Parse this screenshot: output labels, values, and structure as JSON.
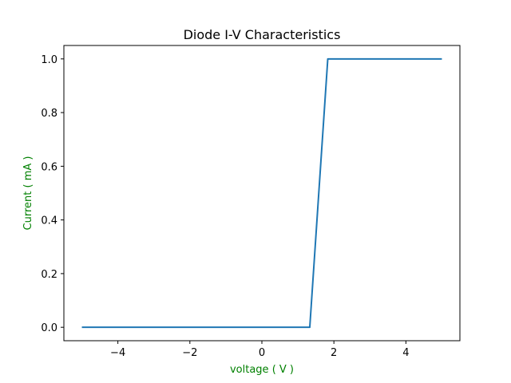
{
  "chart_data": {
    "type": "line",
    "title": "Diode I-V Characteristics",
    "xlabel": "voltage ( V )",
    "ylabel": "Current ( mA )",
    "label_color": "#008000",
    "line_color": "#1f77b4",
    "xlim": [
      -5.5,
      5.5
    ],
    "ylim": [
      -0.05,
      1.05
    ],
    "grid": false,
    "xticks": [
      -4,
      -2,
      0,
      2,
      4
    ],
    "xtick_labels": [
      "−4",
      "−2",
      "0",
      "2",
      "4"
    ],
    "yticks": [
      0.0,
      0.2,
      0.4,
      0.6,
      0.8,
      1.0
    ],
    "ytick_labels": [
      "0.0",
      "0.2",
      "0.4",
      "0.6",
      "0.8",
      "1.0"
    ],
    "series": [
      {
        "x": [
          -5.0,
          1.33,
          1.83,
          5.0
        ],
        "y": [
          0.0,
          0.0,
          1.0,
          1.0
        ]
      }
    ]
  }
}
